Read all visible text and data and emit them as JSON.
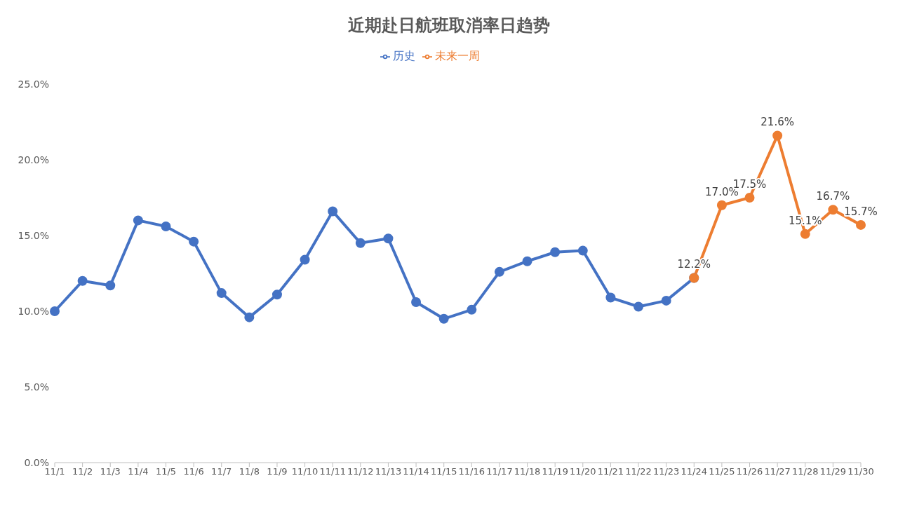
{
  "chart_data": {
    "type": "line",
    "title": "近期赴日航班取消率日趋势",
    "categories": [
      "11/1",
      "11/2",
      "11/3",
      "11/4",
      "11/5",
      "11/6",
      "11/7",
      "11/8",
      "11/9",
      "11/10",
      "11/11",
      "11/12",
      "11/13",
      "11/14",
      "11/15",
      "11/16",
      "11/17",
      "11/18",
      "11/19",
      "11/20",
      "11/21",
      "11/22",
      "11/23",
      "11/24",
      "11/25",
      "11/26",
      "11/27",
      "11/28",
      "11/29",
      "11/30"
    ],
    "series": [
      {
        "name": "历史",
        "color": "#4472c4",
        "values": [
          10.0,
          12.0,
          11.7,
          16.0,
          15.6,
          14.6,
          11.2,
          9.6,
          11.1,
          13.4,
          16.6,
          14.5,
          14.8,
          10.6,
          9.5,
          10.1,
          12.6,
          13.3,
          13.9,
          14.0,
          10.9,
          10.3,
          10.7,
          12.2,
          null,
          null,
          null,
          null,
          null,
          null
        ]
      },
      {
        "name": "未来一周",
        "color": "#ed7d31",
        "values": [
          null,
          null,
          null,
          null,
          null,
          null,
          null,
          null,
          null,
          null,
          null,
          null,
          null,
          null,
          null,
          null,
          null,
          null,
          null,
          null,
          null,
          null,
          null,
          12.2,
          17.0,
          17.5,
          21.6,
          15.1,
          16.7,
          15.7
        ],
        "value_labels": [
          null,
          null,
          null,
          null,
          null,
          null,
          null,
          null,
          null,
          null,
          null,
          null,
          null,
          null,
          null,
          null,
          null,
          null,
          null,
          null,
          null,
          null,
          null,
          "12.2%",
          "17.0%",
          "17.5%",
          "21.6%",
          "15.1%",
          "16.7%",
          "15.7%"
        ]
      }
    ],
    "ylim": [
      0,
      25
    ],
    "yticks": [
      {
        "value": 0,
        "label": "0.0%"
      },
      {
        "value": 5,
        "label": "5.0%"
      },
      {
        "value": 10,
        "label": "10.0%"
      },
      {
        "value": 15,
        "label": "15.0%"
      },
      {
        "value": 20,
        "label": "20.0%"
      },
      {
        "value": 25,
        "label": "25.0%"
      }
    ],
    "grid": false,
    "legend": "top",
    "marker": "circle",
    "line_style": "solid"
  }
}
